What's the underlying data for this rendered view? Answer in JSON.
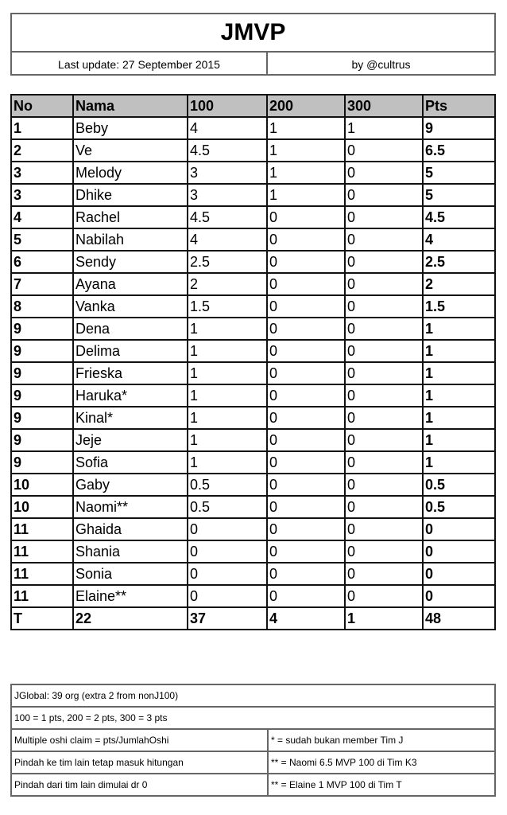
{
  "header": {
    "title": "JMVP",
    "last_update": "Last update: 27 September 2015",
    "author": "by @cultrus"
  },
  "table": {
    "columns": [
      "No",
      "Nama",
      "100",
      "200",
      "300",
      "Pts"
    ],
    "rows": [
      [
        "1",
        "Beby",
        "4",
        "1",
        "1",
        "9"
      ],
      [
        "2",
        "Ve",
        "4.5",
        "1",
        "0",
        "6.5"
      ],
      [
        "3",
        "Melody",
        "3",
        "1",
        "0",
        "5"
      ],
      [
        "3",
        "Dhike",
        "3",
        "1",
        "0",
        "5"
      ],
      [
        "4",
        "Rachel",
        "4.5",
        "0",
        "0",
        "4.5"
      ],
      [
        "5",
        "Nabilah",
        "4",
        "0",
        "0",
        "4"
      ],
      [
        "6",
        "Sendy",
        "2.5",
        "0",
        "0",
        "2.5"
      ],
      [
        "7",
        "Ayana",
        "2",
        "0",
        "0",
        "2"
      ],
      [
        "8",
        "Vanka",
        "1.5",
        "0",
        "0",
        "1.5"
      ],
      [
        "9",
        "Dena",
        "1",
        "0",
        "0",
        "1"
      ],
      [
        "9",
        "Delima",
        "1",
        "0",
        "0",
        "1"
      ],
      [
        "9",
        "Frieska",
        "1",
        "0",
        "0",
        "1"
      ],
      [
        "9",
        "Haruka*",
        "1",
        "0",
        "0",
        "1"
      ],
      [
        "9",
        "Kinal*",
        "1",
        "0",
        "0",
        "1"
      ],
      [
        "9",
        "Jeje",
        "1",
        "0",
        "0",
        "1"
      ],
      [
        "9",
        "Sofia",
        "1",
        "0",
        "0",
        "1"
      ],
      [
        "10",
        "Gaby",
        "0.5",
        "0",
        "0",
        "0.5"
      ],
      [
        "10",
        "Naomi**",
        "0.5",
        "0",
        "0",
        "0.5"
      ],
      [
        "11",
        "Ghaida",
        "0",
        "0",
        "0",
        "0"
      ],
      [
        "11",
        "Shania",
        "0",
        "0",
        "0",
        "0"
      ],
      [
        "11",
        "Sonia",
        "0",
        "0",
        "0",
        "0"
      ],
      [
        "11",
        "Elaine**",
        "0",
        "0",
        "0",
        "0"
      ]
    ],
    "total": [
      "T",
      "22",
      "37",
      "4",
      "1",
      "48"
    ]
  },
  "notes": {
    "full": [
      "JGlobal: 39 org (extra 2 from nonJ100)",
      "100 = 1 pts, 200 = 2 pts, 300 = 3 pts"
    ],
    "split": [
      [
        "Multiple oshi claim = pts/JumlahOshi",
        "* = sudah bukan member Tim J"
      ],
      [
        "Pindah ke tim lain tetap masuk hitungan",
        "** = Naomi 6.5 MVP 100 di Tim K3"
      ],
      [
        "Pindah dari tim lain dimulai dr 0",
        "** = Elaine 1 MVP 100 di Tim T"
      ]
    ]
  }
}
